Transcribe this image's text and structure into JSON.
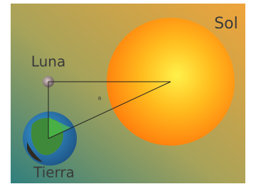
{
  "labels": {
    "sun": "Sol",
    "moon": "Luna",
    "earth": "Tierra",
    "angle": "a"
  }
}
